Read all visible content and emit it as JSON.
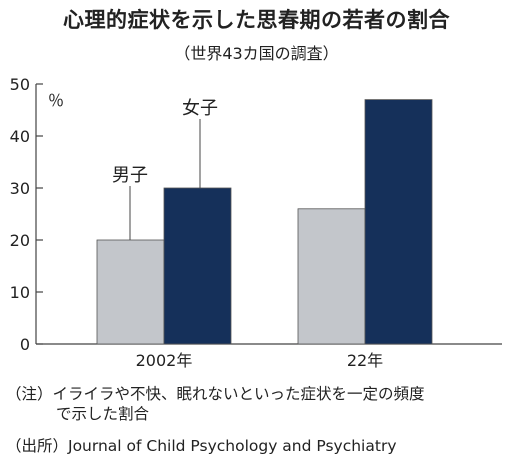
{
  "title": "心理的症状を示した思春期の若者の割合",
  "subtitle": "（世界43カ国の調査）",
  "chart_data": {
    "type": "bar",
    "categories": [
      "2002年",
      "22年"
    ],
    "series": [
      {
        "name": "男子",
        "values": [
          20,
          26
        ],
        "color": "#c3c6cb"
      },
      {
        "name": "女子",
        "values": [
          30,
          47
        ],
        "color": "#15305a"
      }
    ],
    "ylabel": "％",
    "ylim": [
      0,
      50
    ],
    "yticks": [
      0,
      10,
      20,
      30,
      40,
      50
    ],
    "grid": false,
    "legend": "callout-labels"
  },
  "notes": {
    "note_line1": "（注）イライラや不快、眠れないといった症状を一定の頻度",
    "note_line2": "で示した割合",
    "source": "（出所）Journal of Child Psychology and Psychiatry"
  }
}
